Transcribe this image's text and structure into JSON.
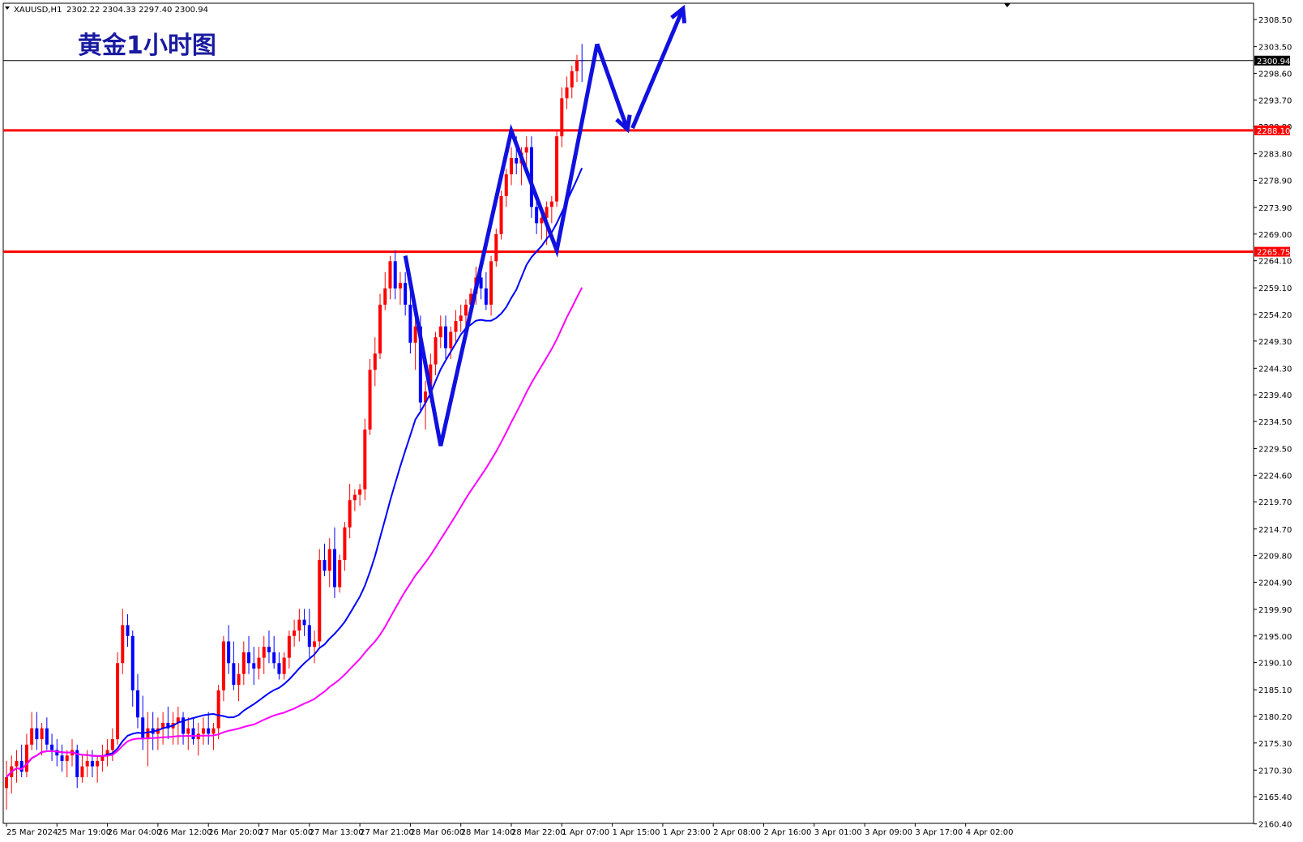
{
  "header": {
    "symbol": "XAUUSD,H1",
    "ohlc": "2302.22 2304.33 2297.40 2300.94"
  },
  "annotation_title": "黄金1小时图",
  "colors": {
    "bull": "#ff0000",
    "bear": "#0000ff",
    "ma_fast": "#0000ff",
    "ma_slow": "#ff00ff",
    "level": "#ff0000",
    "arrow": "#1010e0",
    "current_line": "#000000"
  },
  "price_tags": {
    "current": "2300.94",
    "upper_level": "2288.10",
    "lower_level": "2265.75"
  },
  "chart_data": {
    "type": "candlestick",
    "title": "黄金1小时图",
    "symbol": "XAUUSD,H1",
    "ylim": [
      2160.5,
      2311.5
    ],
    "y_ticks": [
      "2308.50",
      "2303.50",
      "2298.60",
      "2293.70",
      "2288.80",
      "2283.80",
      "2278.90",
      "2273.90",
      "2269.00",
      "2264.10",
      "2259.10",
      "2254.20",
      "2249.30",
      "2244.30",
      "2239.40",
      "2234.50",
      "2229.50",
      "2224.60",
      "2219.70",
      "2214.70",
      "2209.80",
      "2204.90",
      "2199.90",
      "2195.00",
      "2190.10",
      "2185.10",
      "2180.20",
      "2175.30",
      "2170.30",
      "2165.40",
      "2160.40"
    ],
    "x_ticks": [
      {
        "label": "25 Mar 2024",
        "i": 0
      },
      {
        "label": "25 Mar 19:00",
        "i": 10
      },
      {
        "label": "26 Mar 04:00",
        "i": 20
      },
      {
        "label": "26 Mar 12:00",
        "i": 30
      },
      {
        "label": "26 Mar 20:00",
        "i": 40
      },
      {
        "label": "27 Mar 05:00",
        "i": 50
      },
      {
        "label": "27 Mar 13:00",
        "i": 60
      },
      {
        "label": "27 Mar 21:00",
        "i": 70
      },
      {
        "label": "28 Mar 06:00",
        "i": 80
      },
      {
        "label": "28 Mar 14:00",
        "i": 90
      },
      {
        "label": "28 Mar 22:00",
        "i": 100
      },
      {
        "label": "1 Apr 07:00",
        "i": 110
      },
      {
        "label": "1 Apr 15:00",
        "i": 120
      },
      {
        "label": "1 Apr 23:00",
        "i": 130
      },
      {
        "label": "2 Apr 08:00",
        "i": 140
      },
      {
        "label": "2 Apr 16:00",
        "i": 150
      },
      {
        "label": "3 Apr 01:00",
        "i": 160
      },
      {
        "label": "3 Apr 09:00",
        "i": 170
      },
      {
        "label": "3 Apr 17:00",
        "i": 180
      },
      {
        "label": "4 Apr 02:00",
        "i": 190
      }
    ],
    "horizontal_levels": [
      2288.1,
      2265.75
    ],
    "current_price": 2300.94,
    "ohlc": [
      [
        2167,
        2172,
        2163,
        2169
      ],
      [
        2169,
        2173,
        2166,
        2171
      ],
      [
        2171,
        2174,
        2168,
        2172
      ],
      [
        2172,
        2175,
        2169,
        2170
      ],
      [
        2170,
        2177,
        2169,
        2175
      ],
      [
        2175,
        2181,
        2174,
        2178
      ],
      [
        2178,
        2181,
        2174,
        2176
      ],
      [
        2176,
        2179,
        2173,
        2178
      ],
      [
        2178,
        2180,
        2174,
        2175
      ],
      [
        2175,
        2177,
        2172,
        2174
      ],
      [
        2174,
        2176,
        2171,
        2173
      ],
      [
        2173,
        2175,
        2170,
        2172
      ],
      [
        2172,
        2174,
        2169,
        2173
      ],
      [
        2173,
        2176,
        2171,
        2174
      ],
      [
        2174,
        2175,
        2167,
        2169
      ],
      [
        2169,
        2173,
        2168,
        2171
      ],
      [
        2171,
        2174,
        2169,
        2172
      ],
      [
        2172,
        2174,
        2169,
        2171
      ],
      [
        2171,
        2173,
        2168,
        2172
      ],
      [
        2172,
        2175,
        2170,
        2173
      ],
      [
        2173,
        2176,
        2171,
        2174
      ],
      [
        2174,
        2178,
        2172,
        2176
      ],
      [
        2176,
        2192,
        2175,
        2190
      ],
      [
        2190,
        2200,
        2188,
        2197
      ],
      [
        2197,
        2199,
        2193,
        2195
      ],
      [
        2195,
        2196,
        2182,
        2185
      ],
      [
        2185,
        2188,
        2178,
        2180
      ],
      [
        2180,
        2184,
        2174,
        2176
      ],
      [
        2176,
        2181,
        2171,
        2178
      ],
      [
        2178,
        2181,
        2174,
        2177
      ],
      [
        2177,
        2180,
        2174,
        2178
      ],
      [
        2178,
        2181,
        2175,
        2179
      ],
      [
        2179,
        2182,
        2176,
        2178
      ],
      [
        2178,
        2181,
        2175,
        2179
      ],
      [
        2179,
        2182,
        2175,
        2180
      ],
      [
        2180,
        2181,
        2175,
        2177
      ],
      [
        2177,
        2180,
        2174,
        2178
      ],
      [
        2178,
        2180,
        2175,
        2176
      ],
      [
        2176,
        2179,
        2173,
        2177
      ],
      [
        2177,
        2180,
        2175,
        2178
      ],
      [
        2178,
        2181,
        2175,
        2177
      ],
      [
        2177,
        2179,
        2174,
        2178
      ],
      [
        2178,
        2186,
        2176,
        2185
      ],
      [
        2185,
        2195,
        2183,
        2194
      ],
      [
        2194,
        2197,
        2188,
        2190
      ],
      [
        2190,
        2194,
        2185,
        2186
      ],
      [
        2186,
        2190,
        2183,
        2188
      ],
      [
        2188,
        2194,
        2186,
        2192
      ],
      [
        2192,
        2195,
        2188,
        2190
      ],
      [
        2190,
        2193,
        2186,
        2189
      ],
      [
        2189,
        2193,
        2187,
        2191
      ],
      [
        2191,
        2195,
        2188,
        2193
      ],
      [
        2193,
        2196,
        2190,
        2192
      ],
      [
        2192,
        2195,
        2189,
        2190
      ],
      [
        2190,
        2192,
        2187,
        2188
      ],
      [
        2188,
        2192,
        2187,
        2191
      ],
      [
        2191,
        2196,
        2189,
        2195
      ],
      [
        2195,
        2198,
        2193,
        2196
      ],
      [
        2196,
        2200,
        2194,
        2198
      ],
      [
        2198,
        2200,
        2195,
        2197
      ],
      [
        2197,
        2200,
        2191,
        2193
      ],
      [
        2193,
        2196,
        2190,
        2194
      ],
      [
        2194,
        2211,
        2193,
        2209
      ],
      [
        2209,
        2212,
        2206,
        2207
      ],
      [
        2207,
        2213,
        2204,
        2211
      ],
      [
        2211,
        2215,
        2202,
        2204
      ],
      [
        2204,
        2210,
        2203,
        2209
      ],
      [
        2209,
        2216,
        2207,
        2215
      ],
      [
        2215,
        2223,
        2213,
        2220
      ],
      [
        2220,
        2222,
        2218,
        2221
      ],
      [
        2221,
        2223,
        2219,
        2222
      ],
      [
        2222,
        2235,
        2220,
        2233
      ],
      [
        2233,
        2246,
        2232,
        2244
      ],
      [
        2244,
        2250,
        2241,
        2247
      ],
      [
        2247,
        2258,
        2246,
        2256
      ],
      [
        2256,
        2262,
        2255,
        2259
      ],
      [
        2259,
        2265,
        2257,
        2264
      ],
      [
        2264,
        2266,
        2257,
        2259
      ],
      [
        2259,
        2262,
        2256,
        2260
      ],
      [
        2260,
        2262,
        2254,
        2256
      ],
      [
        2256,
        2259,
        2247,
        2249
      ],
      [
        2249,
        2256,
        2244,
        2252
      ],
      [
        2252,
        2254,
        2236,
        2238
      ],
      [
        2238,
        2242,
        2233,
        2240
      ],
      [
        2240,
        2247,
        2238,
        2245
      ],
      [
        2245,
        2251,
        2243,
        2250
      ],
      [
        2250,
        2254,
        2248,
        2252
      ],
      [
        2252,
        2254,
        2246,
        2248
      ],
      [
        2248,
        2252,
        2246,
        2251
      ],
      [
        2251,
        2255,
        2249,
        2253
      ],
      [
        2253,
        2256,
        2251,
        2254
      ],
      [
        2254,
        2257,
        2252,
        2256
      ],
      [
        2256,
        2259,
        2254,
        2258
      ],
      [
        2258,
        2263,
        2256,
        2261
      ],
      [
        2261,
        2263,
        2257,
        2259
      ],
      [
        2259,
        2262,
        2255,
        2256
      ],
      [
        2256,
        2265,
        2254,
        2264
      ],
      [
        2264,
        2270,
        2263,
        2269
      ],
      [
        2269,
        2277,
        2268,
        2276
      ],
      [
        2276,
        2281,
        2274,
        2280
      ],
      [
        2280,
        2285,
        2278,
        2283
      ],
      [
        2283,
        2287,
        2280,
        2282
      ],
      [
        2282,
        2285,
        2278,
        2284
      ],
      [
        2284,
        2287,
        2281,
        2285
      ],
      [
        2285,
        2287,
        2272,
        2274
      ],
      [
        2274,
        2276,
        2269,
        2271
      ],
      [
        2271,
        2274,
        2268,
        2272
      ],
      [
        2272,
        2275,
        2267,
        2274
      ],
      [
        2274,
        2276,
        2271,
        2275
      ],
      [
        2275,
        2288,
        2274,
        2287
      ],
      [
        2287,
        2296,
        2285,
        2294
      ],
      [
        2294,
        2298,
        2292,
        2296
      ],
      [
        2296,
        2300,
        2294,
        2299
      ],
      [
        2299,
        2302,
        2297,
        2301
      ],
      [
        2301,
        2304,
        2297,
        2300.94
      ]
    ]
  }
}
